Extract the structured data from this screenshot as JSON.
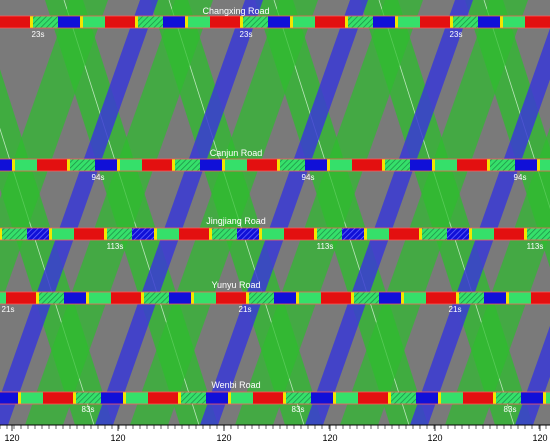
{
  "diagram": {
    "type": "time-space-diagram",
    "roads": [
      {
        "name": "Changxing Road",
        "offset_label": "23s"
      },
      {
        "name": "Canjun Road",
        "offset_label": "94s"
      },
      {
        "name": "Jingjiang Road",
        "offset_label": "113s"
      },
      {
        "name": "Yunyu Road",
        "offset_label": "21s"
      },
      {
        "name": "Wenbi Road",
        "offset_label": "83s"
      }
    ],
    "cycle_label": "120",
    "colors": {
      "background": "#7a7a7a",
      "green_band": "#2dbd2d",
      "blue_band": "#3a3ad6",
      "red_phase": "#e31010",
      "green_phase": "#35e06a",
      "blue_phase": "#1010d8",
      "yellow_phase": "#f2e600",
      "axis_text": "#000000"
    }
  }
}
